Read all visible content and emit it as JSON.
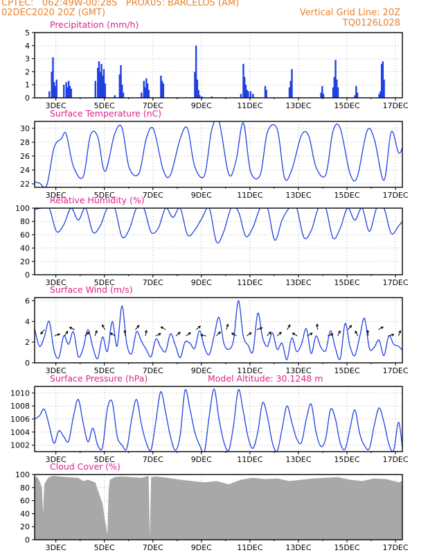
{
  "header": {
    "line1_left": "CPTEC:   062:49W-00:28S   PROX05: BARCELOS (AM)",
    "line2_left": "02DEC2020 20Z (GMT)",
    "line2_right": "Vertical Grid Line: 20Z",
    "line3_right": "TQ0126L028"
  },
  "colors": {
    "header": "#e8822a",
    "title": "#e0208a",
    "series": "#2040e0",
    "cloud": "#a8a8a8",
    "grid": "#b0b0b0"
  },
  "x_axis": {
    "range_days": [
      0,
      15.16
    ],
    "tick_labels": [
      "3DEC",
      "5DEC",
      "7DEC",
      "9DEC",
      "11DEC",
      "13DEC",
      "15DEC",
      "17DEC"
    ],
    "tick_days": [
      0.875,
      2.875,
      4.875,
      6.875,
      8.875,
      10.875,
      12.875,
      14.875
    ]
  },
  "chart_data": [
    {
      "type": "bar",
      "title": "Precipitation (mm/h)",
      "ylim": [
        0,
        5
      ],
      "yticks": [
        0,
        1,
        2,
        3,
        4,
        5
      ],
      "x": [
        0.6,
        0.7,
        0.75,
        0.8,
        0.85,
        0.9,
        1.2,
        1.3,
        1.35,
        1.4,
        1.45,
        1.5,
        2.5,
        2.6,
        2.65,
        2.7,
        2.75,
        2.8,
        2.85,
        2.9,
        3.3,
        3.5,
        3.55,
        3.6,
        3.65,
        4.4,
        4.5,
        4.55,
        4.6,
        4.65,
        4.7,
        5.2,
        5.25,
        5.3,
        6.6,
        6.65,
        6.7,
        6.75,
        6.8,
        6.9,
        7.3,
        8.5,
        8.6,
        8.65,
        8.7,
        8.75,
        8.8,
        8.9,
        9.0,
        9.5,
        9.55,
        10.5,
        10.55,
        10.6,
        11.8,
        11.85,
        11.9,
        12.3,
        12.35,
        12.4,
        12.45,
        12.5,
        13.2,
        13.25,
        13.3,
        14.2,
        14.25,
        14.3,
        14.35,
        14.4
      ],
      "values": [
        0.5,
        2.0,
        3.1,
        1.2,
        0.9,
        1.4,
        1.0,
        1.2,
        0.8,
        1.3,
        0.9,
        0.7,
        1.3,
        2.3,
        2.8,
        2.0,
        2.6,
        1.7,
        2.2,
        1.1,
        0.2,
        1.8,
        2.5,
        1.0,
        0.4,
        0.4,
        1.3,
        0.8,
        1.5,
        1.1,
        0.6,
        1.7,
        1.3,
        1.1,
        2.0,
        4.0,
        1.4,
        0.6,
        0.2,
        0.1,
        0.1,
        0.3,
        2.6,
        1.6,
        1.0,
        0.6,
        0.5,
        0.5,
        0.3,
        0.9,
        0.6,
        0.8,
        1.3,
        2.2,
        0.4,
        0.9,
        0.3,
        0.8,
        1.6,
        2.9,
        1.4,
        0.8,
        0.2,
        0.9,
        0.4,
        0.3,
        0.5,
        2.6,
        2.8,
        1.4
      ]
    },
    {
      "type": "line",
      "title": "Surface Temperature (nC)",
      "ylim": [
        21.5,
        31
      ],
      "yticks": [
        22,
        24,
        26,
        28,
        30
      ],
      "x": [
        0,
        0.2,
        0.5,
        0.8,
        1.1,
        1.3,
        1.6,
        2.0,
        2.3,
        2.6,
        2.9,
        3.3,
        3.6,
        3.9,
        4.3,
        4.6,
        4.9,
        5.3,
        5.6,
        6.0,
        6.3,
        6.6,
        7.0,
        7.3,
        7.6,
        8.0,
        8.3,
        8.6,
        8.9,
        9.3,
        9.6,
        10.0,
        10.3,
        10.6,
        11.0,
        11.3,
        11.6,
        12.0,
        12.3,
        12.6,
        13.0,
        13.3,
        13.7,
        14.0,
        14.4,
        14.7,
        15.0,
        15.16
      ],
      "values": [
        22.3,
        22.1,
        21.8,
        27.2,
        28.5,
        29.2,
        24.5,
        23.0,
        29.0,
        28.8,
        23.8,
        29.2,
        30.1,
        24.3,
        23.5,
        28.5,
        29.9,
        24.0,
        23.3,
        28.5,
        30.0,
        24.5,
        23.2,
        29.8,
        31.0,
        23.4,
        25.3,
        30.8,
        23.8,
        23.3,
        29.5,
        29.9,
        22.9,
        24.0,
        29.0,
        28.9,
        24.4,
        23.3,
        29.6,
        30.0,
        23.5,
        23.0,
        29.6,
        28.5,
        22.5,
        29.5,
        26.5,
        27.2
      ]
    },
    {
      "type": "line",
      "title": "Relative Humidity (%)",
      "ylim": [
        0,
        100
      ],
      "yticks": [
        0,
        20,
        40,
        60,
        80,
        100
      ],
      "x": [
        0,
        0.3,
        0.6,
        0.9,
        1.2,
        1.5,
        1.8,
        2.1,
        2.4,
        2.7,
        3.0,
        3.3,
        3.6,
        3.9,
        4.2,
        4.5,
        4.8,
        5.1,
        5.4,
        5.7,
        6.0,
        6.3,
        6.6,
        6.9,
        7.2,
        7.5,
        7.8,
        8.1,
        8.4,
        8.7,
        9.0,
        9.3,
        9.6,
        9.9,
        10.2,
        10.5,
        10.8,
        11.1,
        11.4,
        11.7,
        12.0,
        12.3,
        12.6,
        12.9,
        13.2,
        13.5,
        13.8,
        14.1,
        14.4,
        14.7,
        15.0,
        15.16
      ],
      "values": [
        98,
        100,
        100,
        65,
        75,
        100,
        82,
        100,
        64,
        73,
        100,
        100,
        57,
        68,
        100,
        100,
        64,
        70,
        100,
        86,
        100,
        60,
        67,
        85,
        100,
        49,
        65,
        100,
        95,
        58,
        71,
        100,
        100,
        52,
        82,
        100,
        100,
        56,
        66,
        100,
        100,
        55,
        70,
        100,
        82,
        100,
        65,
        100,
        100,
        62,
        73,
        80
      ]
    },
    {
      "type": "line",
      "title": "Surface Wind (m/s)",
      "ylim": [
        0,
        6.3
      ],
      "yticks": [
        0,
        2,
        4,
        6
      ],
      "x": [
        0,
        0.2,
        0.4,
        0.6,
        0.8,
        1.0,
        1.2,
        1.4,
        1.6,
        1.8,
        2.0,
        2.2,
        2.4,
        2.6,
        2.8,
        3.0,
        3.2,
        3.4,
        3.6,
        3.8,
        4.0,
        4.2,
        4.4,
        4.6,
        4.8,
        5.0,
        5.2,
        5.4,
        5.6,
        5.8,
        6.0,
        6.2,
        6.4,
        6.6,
        6.8,
        7.0,
        7.2,
        7.4,
        7.6,
        7.8,
        8.0,
        8.2,
        8.4,
        8.6,
        8.8,
        9.0,
        9.2,
        9.4,
        9.6,
        9.8,
        10.0,
        10.2,
        10.4,
        10.6,
        10.8,
        11.0,
        11.2,
        11.4,
        11.6,
        11.8,
        12.0,
        12.2,
        12.4,
        12.6,
        12.8,
        13.0,
        13.2,
        13.4,
        13.6,
        13.8,
        14.0,
        14.2,
        14.4,
        14.6,
        14.8,
        15.0,
        15.16
      ],
      "values": [
        3.3,
        1.6,
        2.5,
        4.0,
        1.2,
        0.5,
        2.6,
        1.8,
        3.0,
        0.6,
        1.4,
        3.2,
        1.5,
        0.4,
        2.5,
        1.1,
        4.0,
        1.6,
        5.5,
        1.8,
        0.9,
        3.0,
        2.1,
        1.3,
        0.6,
        2.3,
        1.5,
        1.1,
        2.8,
        1.7,
        0.5,
        2.0,
        1.9,
        1.4,
        3.1,
        1.5,
        0.8,
        2.6,
        4.4,
        1.9,
        1.3,
        2.2,
        6.0,
        2.6,
        1.7,
        1.1,
        4.8,
        2.4,
        1.6,
        2.9,
        1.3,
        1.9,
        0.3,
        2.4,
        1.1,
        1.8,
        3.3,
        0.9,
        2.6,
        1.5,
        1.2,
        3.1,
        1.4,
        0.4,
        3.8,
        1.6,
        0.7,
        2.5,
        4.3,
        1.4,
        1.5,
        2.2,
        0.7,
        2.6,
        1.8,
        1.6,
        1.2
      ]
    },
    {
      "type": "line",
      "title": "Surface Pressure (hPa)",
      "annotation": "Model Altitude: 30.1248 m",
      "ylim": [
        1001,
        1011
      ],
      "yticks": [
        1002,
        1004,
        1006,
        1008,
        1010
      ],
      "x": [
        0,
        0.2,
        0.4,
        0.6,
        0.8,
        1.0,
        1.2,
        1.4,
        1.6,
        1.8,
        2.0,
        2.2,
        2.4,
        2.6,
        2.8,
        3.0,
        3.2,
        3.4,
        3.6,
        3.8,
        4.0,
        4.2,
        4.4,
        4.6,
        4.8,
        5.0,
        5.2,
        5.4,
        5.6,
        5.8,
        6.0,
        6.2,
        6.4,
        6.6,
        6.8,
        7.0,
        7.2,
        7.4,
        7.6,
        7.8,
        8.0,
        8.2,
        8.4,
        8.6,
        8.8,
        9.0,
        9.2,
        9.4,
        9.6,
        9.8,
        10.0,
        10.2,
        10.4,
        10.6,
        10.8,
        11.0,
        11.2,
        11.4,
        11.6,
        11.8,
        12.0,
        12.2,
        12.4,
        12.6,
        12.8,
        13.0,
        13.2,
        13.4,
        13.6,
        13.8,
        14.0,
        14.2,
        14.4,
        14.6,
        14.8,
        15.0,
        15.16
      ],
      "values": [
        1006,
        1006.5,
        1007.5,
        1005,
        1002.3,
        1004.2,
        1003.3,
        1002.6,
        1006.4,
        1009,
        1005.4,
        1002.5,
        1004.6,
        1002,
        1001.7,
        1007.6,
        1008.6,
        1003.4,
        1002,
        1001.5,
        1006,
        1009,
        1005.2,
        1002.4,
        1001.3,
        1005.7,
        1010.2,
        1007,
        1003.3,
        1001.2,
        1003.5,
        1010.4,
        1007.6,
        1004,
        1002,
        1001,
        1006.5,
        1010.6,
        1006,
        1002.5,
        1001.2,
        1005,
        1010.5,
        1007.2,
        1003.2,
        1001.5,
        1004,
        1008.5,
        1006.3,
        1002.4,
        1001.1,
        1004.5,
        1008,
        1005.5,
        1003,
        1002.4,
        1006,
        1008.3,
        1004,
        1001.8,
        1003,
        1007.5,
        1006,
        1002.3,
        1001.4,
        1004.5,
        1007.4,
        1003.8,
        1001.9,
        1001.5,
        1005,
        1007.7,
        1005.5,
        1002.2,
        1001.2,
        1005.5,
        1001.6
      ]
    },
    {
      "type": "area",
      "title": "Cloud Cover (%)",
      "ylim": [
        0,
        100
      ],
      "yticks": [
        0,
        20,
        40,
        60,
        80,
        100
      ],
      "x": [
        0,
        0.1,
        0.2,
        0.3,
        0.35,
        0.4,
        0.5,
        0.6,
        0.8,
        1.0,
        1.4,
        1.8,
        2.0,
        2.2,
        2.5,
        2.8,
        2.9,
        3.0,
        3.05,
        3.1,
        3.3,
        3.6,
        4.0,
        4.4,
        4.7,
        4.75,
        4.8,
        5.0,
        5.5,
        6.0,
        6.5,
        7.0,
        7.5,
        8.0,
        8.5,
        9.0,
        9.5,
        10.0,
        10.5,
        11.0,
        11.5,
        12.0,
        12.5,
        13.0,
        13.5,
        14.0,
        14.5,
        15.0,
        15.16
      ],
      "values": [
        95,
        97,
        90,
        80,
        40,
        85,
        92,
        96,
        98,
        97,
        96,
        95,
        90,
        92,
        88,
        55,
        30,
        8,
        75,
        92,
        96,
        97,
        96,
        95,
        98,
        2,
        96,
        97,
        95,
        92,
        90,
        88,
        90,
        85,
        92,
        95,
        93,
        94,
        90,
        92,
        94,
        95,
        96,
        92,
        90,
        94,
        93,
        88,
        90
      ]
    }
  ],
  "wind_arrows_deg": [
    220,
    70,
    35,
    295,
    50,
    20,
    330,
    300,
    355,
    40,
    10,
    65,
    300,
    50,
    55,
    50,
    280,
    45,
    15,
    300,
    55,
    70,
    45,
    50,
    30,
    300,
    60,
    355,
    70,
    25,
    40,
    330,
    355,
    60,
    75,
    20
  ]
}
